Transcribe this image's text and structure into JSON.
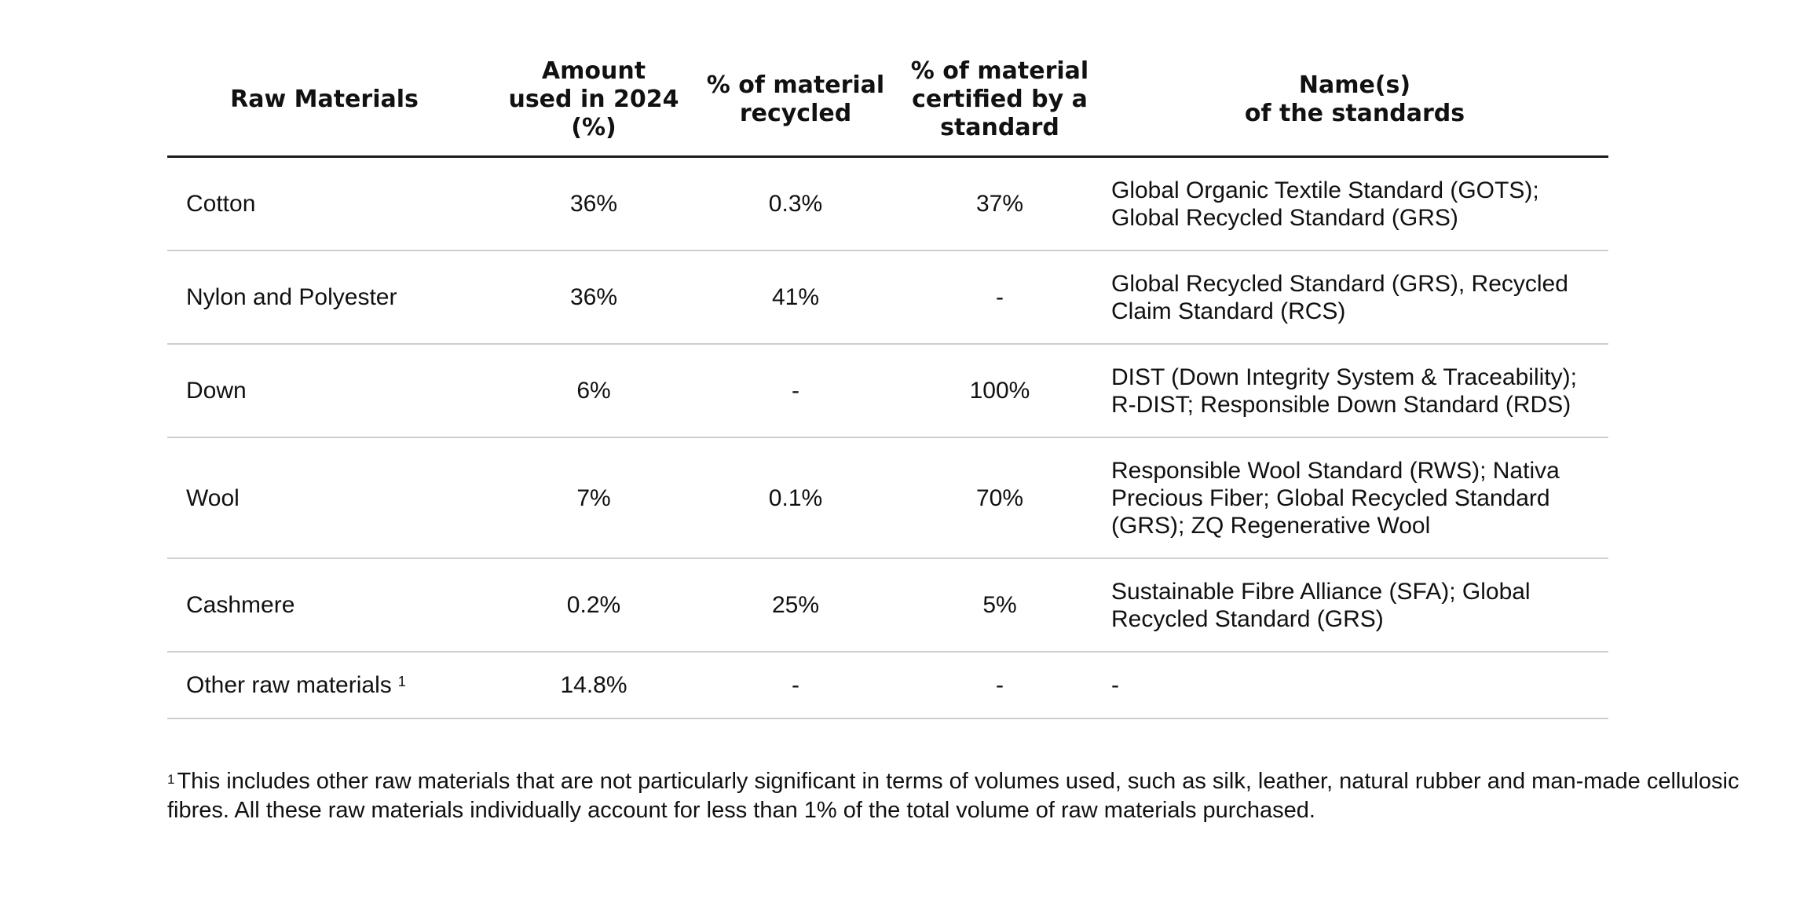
{
  "table": {
    "headers": [
      "Raw Materials",
      "Amount\nused in 2024\n(%)",
      "% of material\nrecycled",
      "% of material\ncertified by a\nstandard",
      "Name(s)\nof the standards"
    ],
    "rows": [
      {
        "material": "Cotton",
        "amount": "36%",
        "recycled": "0.3%",
        "certified": "37%",
        "standards": "Global Organic Textile Standard (GOTS);\nGlobal Recycled Standard (GRS)"
      },
      {
        "material": "Nylon and Polyester",
        "amount": "36%",
        "recycled": "41%",
        "certified": "-",
        "standards": "Global Recycled Standard (GRS), Recycled\nClaim Standard (RCS)"
      },
      {
        "material": "Down",
        "amount": "6%",
        "recycled": "-",
        "certified": "100%",
        "standards": "DIST (Down Integrity System & Traceability);\nR-DIST; Responsible Down Standard (RDS)"
      },
      {
        "material": "Wool",
        "amount": "7%",
        "recycled": "0.1%",
        "certified": "70%",
        "standards": "Responsible Wool Standard (RWS); Nativa\nPrecious Fiber; Global Recycled Standard\n(GRS); ZQ Regenerative Wool"
      },
      {
        "material": "Cashmere",
        "amount": "0.2%",
        "recycled": "25%",
        "certified": "5%",
        "standards": "Sustainable Fibre Alliance (SFA); Global\nRecycled Standard (GRS)"
      },
      {
        "material": "Other raw materials",
        "material_sup": "1",
        "amount": "14.8%",
        "recycled": "-",
        "certified": "-",
        "standards": "-"
      }
    ]
  },
  "footnote": {
    "marker": "1",
    "text": "This includes other raw materials that are not particularly significant in terms of volumes used, such as silk, leather, natural rubber and man-made cellulosic fibres. All these raw materials individually account for less than 1% of the total volume of raw materials purchased."
  }
}
